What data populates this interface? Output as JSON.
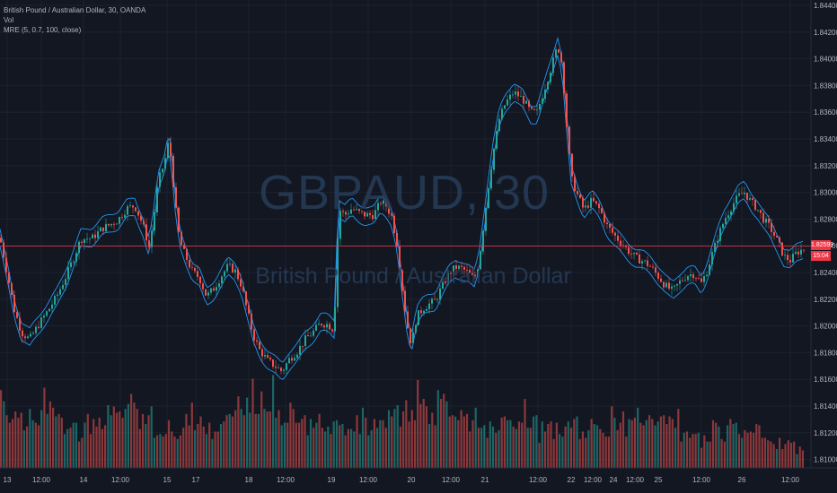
{
  "legend": {
    "symbol_line": "British Pound / Australian Dollar, 30, OANDA",
    "volume_label": "Vol",
    "indicator_label": "MRE (5, 0.7, 100, close)"
  },
  "watermark": {
    "title": "GBPAUD, 30",
    "subtitle": "British Pound / Australian Dollar"
  },
  "current_price": {
    "value": "1.82599",
    "countdown": "15:04"
  },
  "colors": {
    "background": "#131722",
    "up_candle": "#26a69a",
    "down_candle": "#ef5350",
    "band": "#2196f3",
    "price_line": "#f23645"
  },
  "chart_data": {
    "type": "candlestick",
    "y_axis_ticks": [
      "1.84400",
      "1.84200",
      "1.84000",
      "1.83800",
      "1.83600",
      "1.83400",
      "1.83200",
      "1.83000",
      "1.82800",
      "1.82600",
      "1.82400",
      "1.82200",
      "1.82000",
      "1.81800",
      "1.81600",
      "1.81400",
      "1.81200",
      "1.81000"
    ],
    "x_axis_ticks": [
      "13",
      "12:00",
      "14",
      "12:00",
      "15",
      "17",
      "18",
      "12:00",
      "19",
      "12:00",
      "20",
      "12:00",
      "21",
      "12:00",
      "22",
      "12:00",
      "24",
      "12:00",
      "25",
      "12:00",
      "26",
      "12:00"
    ],
    "ylim": [
      1.8098,
      1.8443
    ],
    "close_path": [
      [
        0,
        1.8266
      ],
      [
        9,
        1.8236
      ],
      [
        16,
        1.8212
      ],
      [
        24,
        1.8195
      ],
      [
        33,
        1.819
      ],
      [
        43,
        1.8201
      ],
      [
        54,
        1.8212
      ],
      [
        63,
        1.8222
      ],
      [
        74,
        1.8238
      ],
      [
        82,
        1.8251
      ],
      [
        90,
        1.8265
      ],
      [
        103,
        1.8266
      ],
      [
        114,
        1.8273
      ],
      [
        123,
        1.8276
      ],
      [
        131,
        1.8279
      ],
      [
        141,
        1.8288
      ],
      [
        150,
        1.829
      ],
      [
        159,
        1.8276
      ],
      [
        166,
        1.8259
      ],
      [
        171,
        1.828
      ],
      [
        176,
        1.8308
      ],
      [
        183,
        1.8322
      ],
      [
        188,
        1.8339
      ],
      [
        191,
        1.8322
      ],
      [
        195,
        1.8291
      ],
      [
        200,
        1.8264
      ],
      [
        206,
        1.8253
      ],
      [
        214,
        1.8241
      ],
      [
        222,
        1.8236
      ],
      [
        230,
        1.8222
      ],
      [
        238,
        1.8228
      ],
      [
        247,
        1.8238
      ],
      [
        254,
        1.8245
      ],
      [
        262,
        1.8241
      ],
      [
        269,
        1.823
      ],
      [
        275,
        1.8212
      ],
      [
        282,
        1.8193
      ],
      [
        289,
        1.8182
      ],
      [
        298,
        1.8174
      ],
      [
        306,
        1.817
      ],
      [
        314,
        1.8166
      ],
      [
        322,
        1.8175
      ],
      [
        331,
        1.8181
      ],
      [
        340,
        1.819
      ],
      [
        348,
        1.8195
      ],
      [
        357,
        1.8202
      ],
      [
        365,
        1.8201
      ],
      [
        372,
        1.8197
      ],
      [
        375,
        1.8255
      ],
      [
        378,
        1.8287
      ],
      [
        384,
        1.8283
      ],
      [
        392,
        1.8288
      ],
      [
        399,
        1.8285
      ],
      [
        407,
        1.8283
      ],
      [
        416,
        1.8283
      ],
      [
        424,
        1.8293
      ],
      [
        430,
        1.829
      ],
      [
        436,
        1.8282
      ],
      [
        442,
        1.8262
      ],
      [
        447,
        1.8233
      ],
      [
        453,
        1.8202
      ],
      [
        458,
        1.8186
      ],
      [
        464,
        1.8207
      ],
      [
        471,
        1.8213
      ],
      [
        477,
        1.8216
      ],
      [
        485,
        1.8219
      ],
      [
        491,
        1.8228
      ],
      [
        500,
        1.8239
      ],
      [
        507,
        1.8244
      ],
      [
        514,
        1.8243
      ],
      [
        521,
        1.824
      ],
      [
        528,
        1.8235
      ],
      [
        533,
        1.8247
      ],
      [
        538,
        1.8273
      ],
      [
        543,
        1.83
      ],
      [
        549,
        1.8329
      ],
      [
        556,
        1.8355
      ],
      [
        563,
        1.8367
      ],
      [
        572,
        1.8375
      ],
      [
        582,
        1.837
      ],
      [
        591,
        1.836
      ],
      [
        598,
        1.836
      ],
      [
        606,
        1.8377
      ],
      [
        614,
        1.8394
      ],
      [
        621,
        1.841
      ],
      [
        626,
        1.8395
      ],
      [
        631,
        1.835
      ],
      [
        636,
        1.8311
      ],
      [
        643,
        1.8298
      ],
      [
        650,
        1.8287
      ],
      [
        659,
        1.8294
      ],
      [
        668,
        1.8287
      ],
      [
        676,
        1.8275
      ],
      [
        684,
        1.8268
      ],
      [
        692,
        1.8262
      ],
      [
        700,
        1.8256
      ],
      [
        708,
        1.8251
      ],
      [
        717,
        1.8248
      ],
      [
        725,
        1.8244
      ],
      [
        733,
        1.8237
      ],
      [
        741,
        1.823
      ],
      [
        749,
        1.8226
      ],
      [
        757,
        1.8233
      ],
      [
        765,
        1.8238
      ],
      [
        773,
        1.8239
      ],
      [
        781,
        1.8232
      ],
      [
        787,
        1.8241
      ],
      [
        794,
        1.8256
      ],
      [
        800,
        1.8268
      ],
      [
        807,
        1.828
      ],
      [
        815,
        1.829
      ],
      [
        822,
        1.8297
      ],
      [
        829,
        1.83
      ],
      [
        836,
        1.8293
      ],
      [
        843,
        1.8288
      ],
      [
        850,
        1.828
      ],
      [
        858,
        1.8273
      ],
      [
        866,
        1.8263
      ],
      [
        873,
        1.8252
      ],
      [
        880,
        1.8249
      ],
      [
        887,
        1.8255
      ],
      [
        896,
        1.8258
      ]
    ],
    "band_width": 0.00065,
    "volume_ratios": [
      0.62,
      0.53,
      0.42,
      0.36,
      0.39,
      0.45,
      0.4,
      0.44,
      0.3,
      0.33,
      0.47,
      0.38,
      0.36,
      0.34,
      0.46,
      0.64,
      0.43,
      0.53,
      0.48,
      0.41,
      0.43,
      0.4,
      0.27,
      0.31,
      0.32,
      0.36,
      0.36,
      0.21,
      0.24,
      0.36,
      0.43,
      0.27,
      0.39,
      0.33,
      0.4,
      0.31,
      0.34,
      0.5,
      0.42,
      0.49,
      0.44,
      0.45,
      0.4,
      0.47,
      0.51,
      0.59,
      0.52,
      0.47,
      0.31,
      0.43,
      0.35,
      0.42,
      0.49,
      0.24,
      0.26,
      0.27,
      0.25,
      0.27,
      0.38,
      0.29,
      0.25,
      0.23,
      0.26,
      0.32,
      0.43,
      0.34,
      0.52,
      0.3,
      0.35,
      0.41,
      0.33,
      0.27,
      0.36,
      0.23,
      0.29,
      0.29,
      0.35,
      0.37,
      0.42,
      0.43,
      0.41,
      0.46,
      0.57,
      0.47,
      0.42,
      0.56,
      0.44,
      0.71,
      0.43,
      0.43,
      0.61,
      0.47,
      0.45,
      0.45,
      0.74,
      0.4,
      0.46,
      0.34,
      0.36,
      0.36,
      0.52,
      0.47,
      0.36,
      0.36,
      0.39,
      0.42,
      0.26,
      0.39,
      0.32,
      0.36,
      0.43,
      0.32,
      0.29,
      0.33,
      0.27,
      0.37,
      0.38,
      0.34,
      0.35,
      0.26,
      0.31,
      0.31,
      0.29,
      0.42,
      0.27,
      0.48,
      0.4,
      0.26,
      0.3,
      0.39,
      0.32,
      0.38,
      0.38,
      0.32,
      0.46,
      0.41,
      0.47,
      0.5,
      0.33,
      0.45,
      0.54,
      0.37,
      0.46,
      0.38,
      0.7,
      0.51,
      0.55,
      0.49,
      0.35,
      0.44,
      0.34,
      0.62,
      0.55,
      0.59,
      0.53,
      0.41,
      0.42,
      0.41,
      0.38,
      0.46,
      0.41,
      0.43,
      0.29,
      0.38,
      0.48,
      0.32,
      0.32,
      0.34,
      0.24,
      0.37,
      0.33,
      0.28,
      0.3,
      0.4,
      0.41,
      0.38,
      0.38,
      0.33,
      0.31,
      0.37,
      0.36,
      0.55,
      0.32,
      0.32,
      0.41,
      0.42,
      0.2,
      0.37,
      0.29,
      0.35,
      0.37,
      0.23,
      0.36,
      0.27,
      0.25,
      0.33,
      0.37,
      0.32,
      0.39,
      0.41,
      0.23,
      0.29,
      0.24,
      0.3,
      0.39,
      0.35,
      0.34,
      0.31,
      0.28,
      0.25,
      0.25,
      0.49,
      0.4,
      0.3,
      0.36,
      0.45,
      0.25,
      0.39,
      0.38,
      0.4,
      0.48,
      0.36,
      0.34,
      0.38,
      0.42,
      0.39,
      0.34,
      0.37,
      0.41,
      0.42,
      0.35,
      0.41,
      0.39,
      0.32,
      0.47,
      0.21,
      0.28,
      0.29,
      0.24,
      0.27,
      0.27,
      0.28,
      0.16,
      0.26,
      0.21,
      0.21,
      0.38,
      0.36,
      0.33,
      0.23,
      0.21,
      0.34,
      0.39,
      0.35,
      0.36,
      0.27,
      0.24,
      0.3,
      0.28,
      0.29,
      0.28,
      0.35,
      0.34,
      0.24,
      0.24,
      0.22,
      0.21,
      0.19,
      0.15,
      0.24,
      0.15,
      0.19,
      0.22,
      0.2,
      0.21,
      0.11,
      0.17,
      0.14
    ]
  }
}
